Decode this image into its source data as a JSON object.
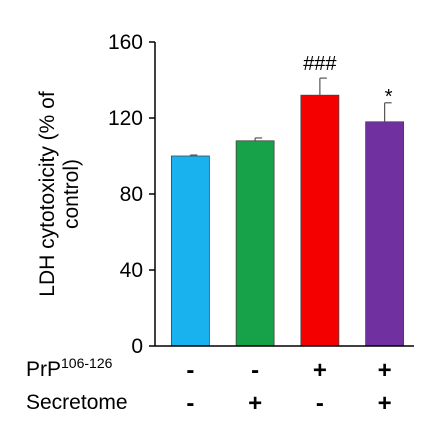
{
  "chart_data": {
    "type": "bar",
    "categories": [
      "- / -",
      "- / +",
      "+ / -",
      "+ / +"
    ],
    "values": [
      100,
      108,
      132,
      118
    ],
    "errors": [
      0.5,
      1.5,
      9,
      10
    ],
    "colors": [
      "#1ab2ee",
      "#17a24a",
      "#f40000",
      "#7030a0"
    ],
    "annotations": [
      "",
      "",
      "###",
      "*"
    ],
    "title": "",
    "ylabel_lines": [
      "LDH cytotoxicity (% of",
      "control)"
    ],
    "ylim": [
      0,
      160
    ],
    "yticks": [
      "0",
      "40",
      "80",
      "120",
      "160"
    ],
    "conditions": [
      {
        "label": "PrP",
        "superscript": "106-126",
        "signs": [
          "-",
          "-",
          "+",
          "+"
        ]
      },
      {
        "label": "Secretome",
        "superscript": "",
        "signs": [
          "-",
          "+",
          "-",
          "+"
        ]
      }
    ],
    "grid": false,
    "legend": "none"
  }
}
